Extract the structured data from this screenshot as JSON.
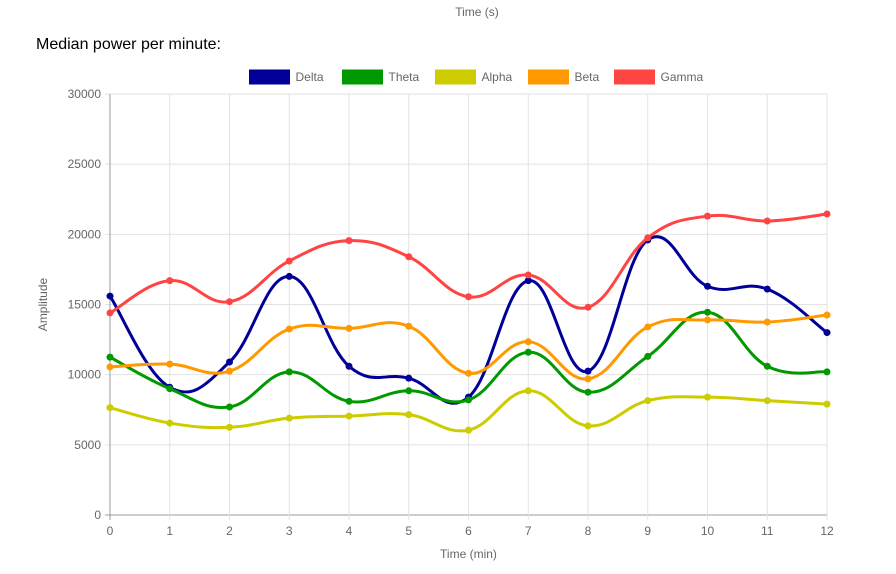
{
  "top_axis_label": "Time (s)",
  "section_title": "Median power per minute:",
  "chart_data": {
    "type": "line",
    "xlabel": "Time (min)",
    "ylabel": "Amplitude",
    "x": [
      0,
      1,
      2,
      3,
      4,
      5,
      6,
      7,
      8,
      9,
      10,
      11,
      12
    ],
    "xlim": [
      0,
      12
    ],
    "ylim": [
      0,
      30000
    ],
    "yticks": [
      0,
      5000,
      10000,
      15000,
      20000,
      25000,
      30000
    ],
    "grid": true,
    "legend": "top",
    "smooth": true,
    "series": [
      {
        "name": "Delta",
        "color": "#000099",
        "values": [
          15600,
          9100,
          10900,
          17000,
          10600,
          9750,
          8400,
          16700,
          10250,
          19600,
          16300,
          16100,
          13000
        ]
      },
      {
        "name": "Theta",
        "color": "#009900",
        "values": [
          11250,
          9000,
          7700,
          10200,
          8100,
          8850,
          8200,
          11600,
          8750,
          11300,
          14450,
          10600,
          10200
        ]
      },
      {
        "name": "Alpha",
        "color": "#cccc00",
        "values": [
          7650,
          6550,
          6250,
          6900,
          7050,
          7150,
          6050,
          8850,
          6350,
          8150,
          8400,
          8150,
          7900
        ]
      },
      {
        "name": "Beta",
        "color": "#ff9900",
        "values": [
          10550,
          10750,
          10250,
          13250,
          13300,
          13450,
          10100,
          12350,
          9700,
          13400,
          13900,
          13750,
          14250
        ]
      },
      {
        "name": "Gamma",
        "color": "#ff4444",
        "values": [
          14400,
          16700,
          15200,
          18100,
          19550,
          18400,
          15550,
          17100,
          14800,
          19750,
          21300,
          20950,
          21450
        ]
      }
    ]
  }
}
